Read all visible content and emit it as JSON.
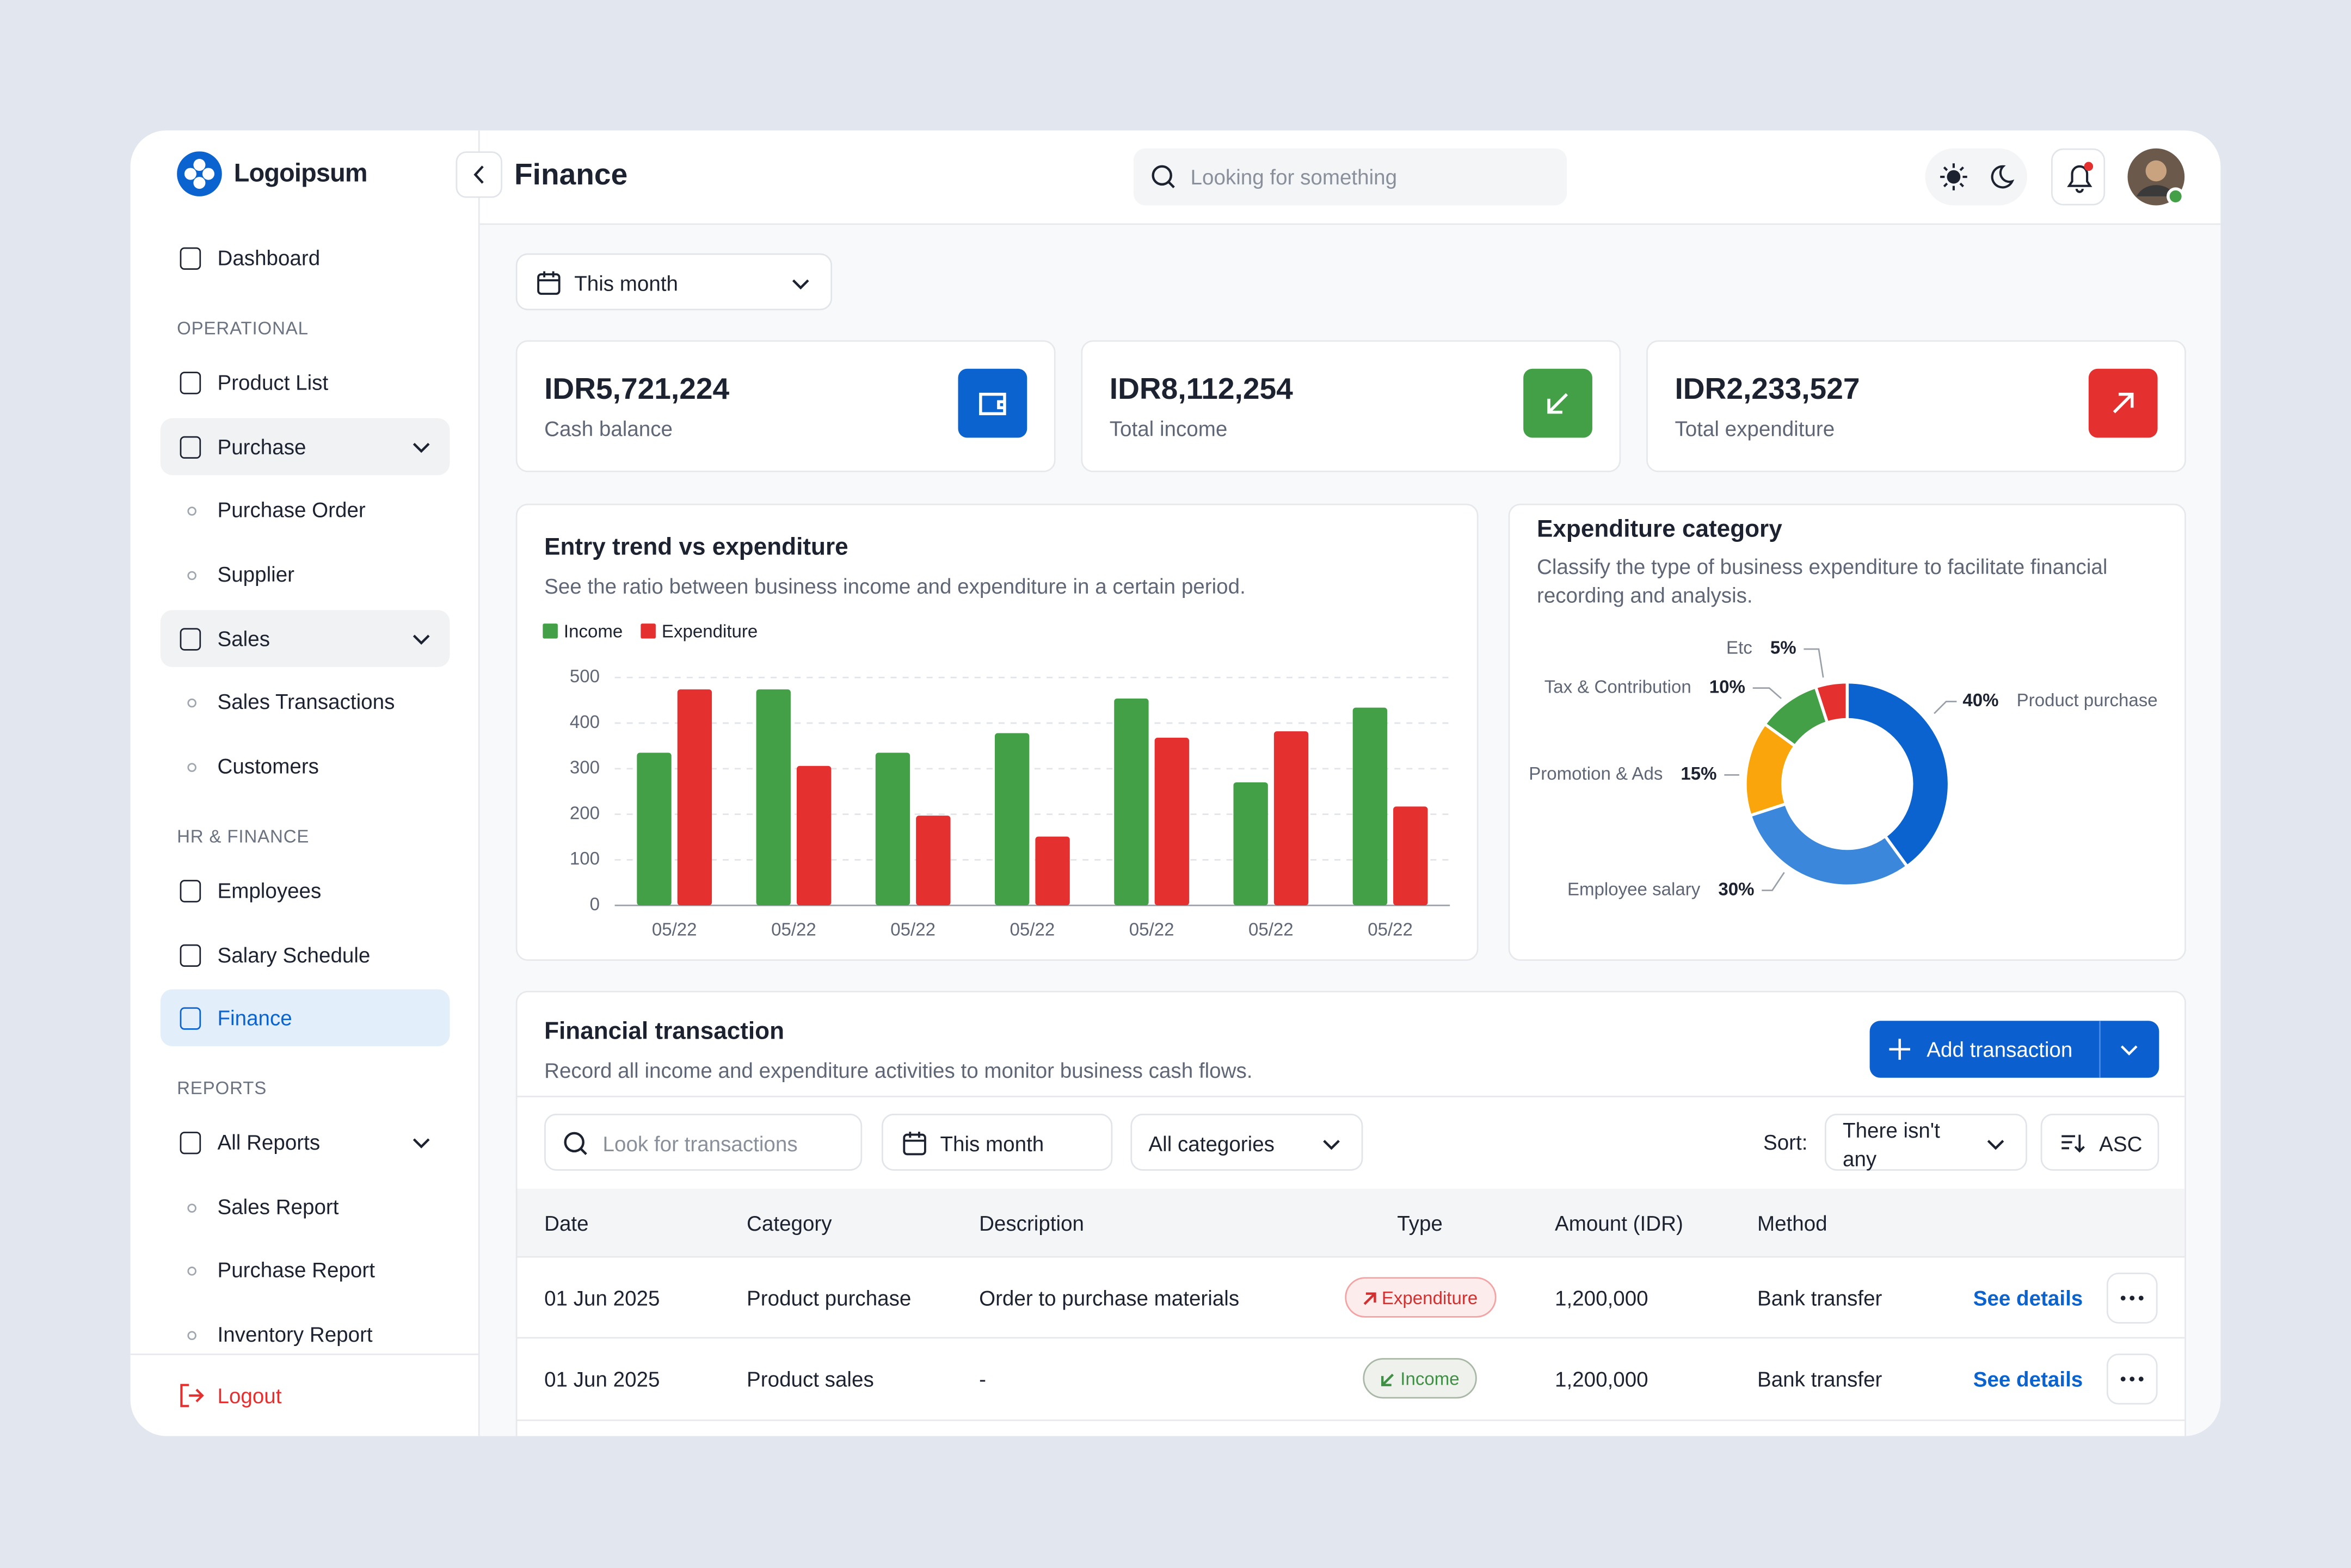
{
  "sidebar": {
    "logo": "Logoipsum",
    "nav": [
      "Dashboard",
      "OPERATIONAL",
      "Product List",
      "Purchase",
      "Purchase Order",
      "Supplier",
      "Sales",
      "Sales Transactions",
      "Customers",
      "HR & FINANCE",
      "Employees",
      "Salary Schedule",
      "Finance",
      "REPORTS",
      "All Reports",
      "Sales Report",
      "Purchase Report",
      "Inventory Report"
    ],
    "logout": "Logout"
  },
  "header": {
    "title": "Finance",
    "search_placeholder": "Looking for something"
  },
  "period_filter": "This month",
  "summary_cards": [
    {
      "value": "IDR5,721,224",
      "label": "Cash balance"
    },
    {
      "value": "IDR8,112,254",
      "label": "Total income"
    },
    {
      "value": "IDR2,233,527",
      "label": "Total expenditure"
    }
  ],
  "chart_data": [
    {
      "type": "bar",
      "title": "Entry trend vs expenditure",
      "subtitle": "See the ratio between business income and expenditure in a certain period.",
      "categories": [
        "05/22",
        "05/22",
        "05/22",
        "05/22",
        "05/22",
        "05/22",
        "05/22"
      ],
      "series": [
        {
          "name": "Income",
          "color": "#43a047",
          "values": [
            335,
            474,
            335,
            378,
            454,
            270,
            434
          ]
        },
        {
          "name": "Expenditure",
          "color": "#e53030",
          "values": [
            474,
            306,
            197,
            151,
            368,
            382,
            217
          ]
        }
      ],
      "ylim": [
        0,
        500
      ],
      "yticks": [
        0,
        100,
        200,
        300,
        400,
        500
      ],
      "grid": true
    },
    {
      "type": "donut",
      "title": "Expenditure category",
      "subtitle": "Classify the type of business expenditure to facilitate financial recording and analysis.",
      "categories": [
        "Product purchase",
        "Employee salary",
        "Promotion & Ads",
        "Tax & Contribution",
        "Etc"
      ],
      "values": [
        40,
        30,
        15,
        10,
        5
      ],
      "value_labels": [
        "40%",
        "30%",
        "15%",
        "10%",
        "5%"
      ],
      "colors": [
        "#0b63cf",
        "#3a87db",
        "#f9a50b",
        "#43a047",
        "#e53030"
      ]
    }
  ],
  "transactions": {
    "title": "Financial transaction",
    "subtitle": "Record all income and expenditure activities to monitor business cash flows.",
    "add_button": "Add transaction",
    "search_placeholder": "Look for transactions",
    "period": "This month",
    "category_filter": "All categories",
    "sort_label": "Sort:",
    "sort_value": "There isn't any",
    "order": "ASC",
    "columns": [
      "Date",
      "Category",
      "Description",
      "Type",
      "Amount (IDR)",
      "Method"
    ],
    "rows": [
      [
        "01 Jun 2025",
        "Product purchase",
        "Order to purchase materials",
        "Expenditure",
        "1,200,000",
        "Bank transfer",
        "See details"
      ],
      [
        "01 Jun 2025",
        "Product sales",
        "-",
        "Income",
        "1,200,000",
        "Bank transfer",
        "See details"
      ]
    ]
  }
}
